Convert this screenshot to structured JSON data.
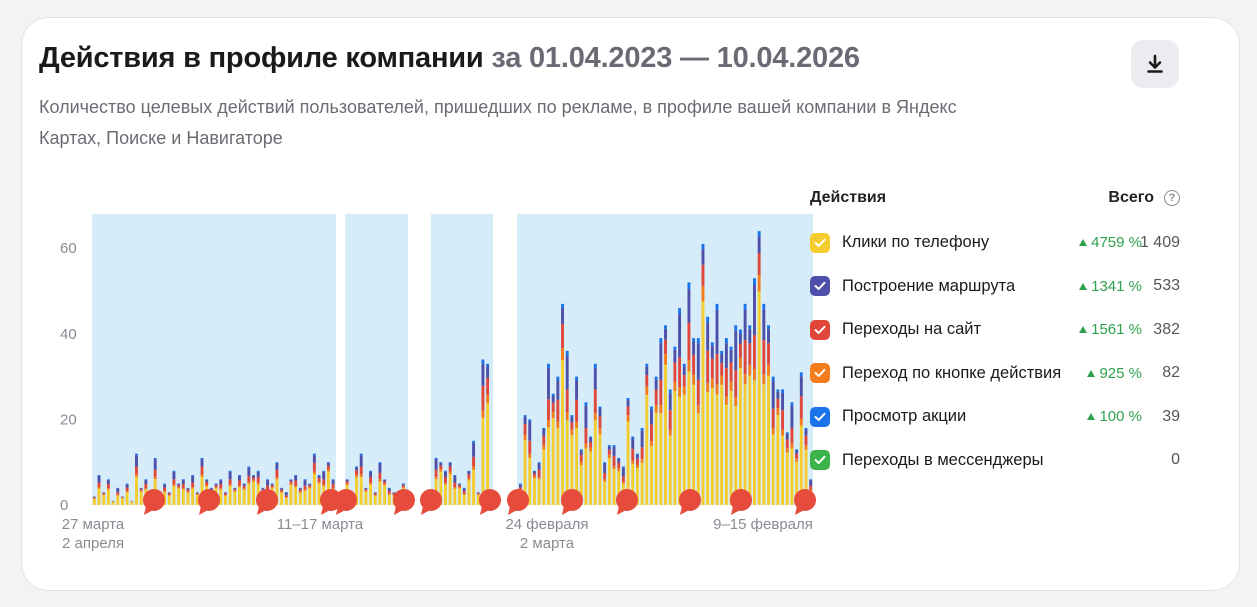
{
  "header": {
    "title": "Действия в профиле компании",
    "period": "за 01.04.2023 — 10.04.2026",
    "subtitle": "Количество целевых действий пользователей, пришедших по рекламе, в профиле вашей компании в Яндекс Картах, Поиске и Навигаторе"
  },
  "toolbar": {
    "download_icon": "download-icon"
  },
  "legend": {
    "header_label": "Действия",
    "header_total": "Всего",
    "help_icon": "help-circle-icon",
    "help_symbol": "?",
    "items": [
      {
        "label": "Клики по телефону",
        "change": "4759 %",
        "total": "1 409",
        "color": "#f5cc2e"
      },
      {
        "label": "Построение маршрута",
        "change": "1341 %",
        "total": "533",
        "color": "#4d4fa8"
      },
      {
        "label": "Переходы на сайт",
        "change": "1561 %",
        "total": "382",
        "color": "#e0463a"
      },
      {
        "label": "Переход по кнопке действия",
        "change": "925 %",
        "total": "82",
        "color": "#f47c1a"
      },
      {
        "label": "Просмотр акции",
        "change": "100 %",
        "total": "39",
        "color": "#1a73e8"
      },
      {
        "label": "Переходы в мессенджеры",
        "change": "",
        "total": "0",
        "color": "#3bb34a"
      }
    ]
  },
  "chart_data": {
    "type": "bar",
    "stacked": true,
    "ylim": [
      0,
      68
    ],
    "yticks": [
      0,
      20,
      40,
      60
    ],
    "xtick_labels": [
      {
        "line1": "27 марта",
        "line2": "2 апреля"
      },
      {
        "line1": "11–17 марта",
        "line2": ""
      },
      {
        "line1": "24 февраля",
        "line2": "2 марта"
      },
      {
        "line1": "9–15 февраля",
        "line2": ""
      }
    ],
    "highlight_color": "#d6ecf8",
    "series_colors": [
      "#f5cc2e",
      "#f47c1a",
      "#e0463a",
      "#4d4fa8",
      "#1a73e8"
    ],
    "totals": [
      2,
      7,
      3,
      6,
      1,
      4,
      2,
      5,
      1,
      12,
      4,
      6,
      2,
      11,
      3,
      5,
      3,
      8,
      5,
      6,
      4,
      7,
      3,
      11,
      6,
      4,
      5,
      6,
      3,
      8,
      4,
      7,
      5,
      9,
      7,
      8,
      4,
      6,
      5,
      10,
      4,
      3,
      6,
      7,
      4,
      6,
      5,
      12,
      7,
      8,
      10,
      6,
      4,
      8,
      6,
      2,
      9,
      12,
      4,
      8,
      3,
      10,
      6,
      4,
      3,
      2,
      5,
      3,
      6,
      5,
      7,
      8,
      10,
      11,
      10,
      8,
      10,
      7,
      5,
      4,
      8,
      15,
      3,
      34,
      33,
      28,
      21,
      6,
      16,
      19,
      12,
      5,
      21,
      20,
      8,
      10,
      18,
      33,
      26,
      30,
      47,
      36,
      21,
      30,
      13,
      24,
      16,
      33,
      23,
      10,
      14,
      14,
      11,
      9,
      25,
      16,
      12,
      18,
      33,
      23,
      30,
      39,
      42,
      27,
      37,
      46,
      33,
      52,
      39,
      39,
      61,
      44,
      38,
      47,
      36,
      39,
      37,
      42,
      41,
      47,
      42,
      53,
      64,
      47,
      42,
      30,
      27,
      27,
      17,
      24,
      13,
      31,
      18,
      6
    ],
    "breakdown": [
      [
        0.72,
        0.06,
        0.12,
        0.08,
        0.02
      ],
      [
        0.55,
        0.05,
        0.15,
        0.22,
        0.03
      ],
      [
        0.78,
        0.06,
        0.08,
        0.06,
        0.02
      ],
      [
        0.6,
        0.05,
        0.17,
        0.15,
        0.03
      ]
    ]
  }
}
